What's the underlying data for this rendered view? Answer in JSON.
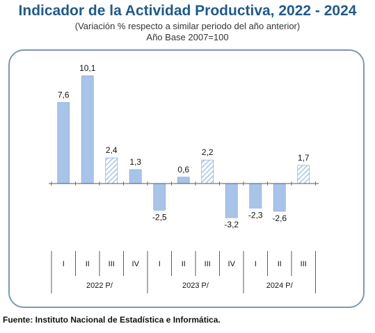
{
  "title": "Indicador de la Actividad Productiva, 2022 - 2024",
  "subtitle": "(Variación % respecto a similar periodo del año anterior)",
  "base": "Año Base 2007=100",
  "source": "Fuente: Instituto Nacional de Estadística e Informática.",
  "colors": {
    "title": "#1f5a8c",
    "bar_fill": "#a8c4ea",
    "bar_stroke": "#8fb0dc",
    "frame": "#7c97b8",
    "axis": "#555555"
  },
  "chart_data": {
    "type": "bar",
    "categories": [
      "I",
      "II",
      "III",
      "IV",
      "I",
      "II",
      "III",
      "IV",
      "I",
      "II",
      "III"
    ],
    "groups": [
      {
        "label": "2022 P/",
        "count": 4
      },
      {
        "label": "2023 P/",
        "count": 4
      },
      {
        "label": "2024 P/",
        "count": 3
      }
    ],
    "values": [
      7.6,
      10.1,
      2.4,
      1.3,
      -2.5,
      0.6,
      2.2,
      -3.2,
      -2.3,
      -2.6,
      1.7
    ],
    "value_labels": [
      "7,6",
      "10,1",
      "2,4",
      "1,3",
      "-2,5",
      "0,6",
      "2,2",
      "-3,2",
      "-2,3",
      "-2,6",
      "1,7"
    ],
    "hatched": [
      false,
      false,
      true,
      false,
      false,
      false,
      true,
      false,
      false,
      false,
      true
    ],
    "ylim": [
      -4,
      11
    ],
    "grid": false,
    "legend": "none"
  }
}
